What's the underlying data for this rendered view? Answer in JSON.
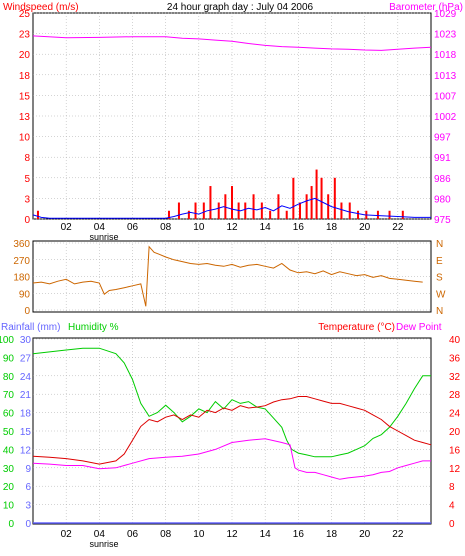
{
  "colors": {
    "wind_avg": "#0000ff",
    "wind_gust": "#ff0000",
    "barometer": "#ff00ff",
    "direction": "#cc6600",
    "rainfall": "#6666ff",
    "humidity": "#00cc00",
    "temperature": "#dd0000",
    "dewpoint": "#ff00ff",
    "axis_black": "#000000",
    "axis_green": "#00cc00",
    "axis_red": "#ff0000",
    "axis_blue": "#6666ff",
    "axis_orange": "#cc6600"
  },
  "chart_data": [
    {
      "type": "line",
      "title": "24 hour graph day : July 04 2006",
      "ylabel_left": "Windspeed (m/s)",
      "ylabel_right": "Barometer (hPa)",
      "ylim_left": [
        0,
        25
      ],
      "left_ticks": [
        0,
        3,
        5,
        8,
        10,
        13,
        15,
        18,
        20,
        23,
        25
      ],
      "right_ticks": [
        975,
        980,
        986,
        991,
        997,
        1002,
        1007,
        1013,
        1018,
        1023,
        1029
      ],
      "x_ticks": [
        "02",
        "04",
        "06",
        "08",
        "10",
        "12",
        "14",
        "16",
        "18",
        "20",
        "22"
      ],
      "x_note": "sunrise",
      "series": [
        {
          "name": "Windspeed (m/s)",
          "axis": "left",
          "x": [
            0,
            0.5,
            1,
            2,
            3,
            4,
            5,
            6,
            7,
            8,
            8.5,
            9,
            9.5,
            10,
            10.5,
            11,
            11.5,
            12,
            12.5,
            13,
            13.5,
            14,
            14.5,
            15,
            15.5,
            16,
            16.5,
            17,
            17.5,
            18,
            18.5,
            19,
            19.5,
            20,
            21,
            22,
            23,
            24
          ],
          "values": [
            0.5,
            0.2,
            0.1,
            0.1,
            0.1,
            0.1,
            0.1,
            0.1,
            0.1,
            0.1,
            0.3,
            0.6,
            0.8,
            0.6,
            1.0,
            1.2,
            1.5,
            1.2,
            1.0,
            1.3,
            1.1,
            1.4,
            1.0,
            1.6,
            1.3,
            1.8,
            2.2,
            2.5,
            2.0,
            1.5,
            1.2,
            0.9,
            0.7,
            0.5,
            0.4,
            0.3,
            0.2,
            0.2
          ]
        },
        {
          "name": "Gust",
          "type": "bar",
          "axis": "left",
          "x": [
            0.3,
            8.2,
            8.8,
            9.4,
            9.8,
            10.3,
            10.7,
            11.2,
            11.6,
            12.0,
            12.4,
            12.8,
            13.3,
            13.8,
            14.3,
            14.8,
            15.3,
            15.7,
            16.1,
            16.5,
            16.8,
            17.1,
            17.4,
            17.8,
            18.2,
            18.6,
            19.1,
            19.6,
            20.1,
            20.8,
            21.5,
            22.3
          ],
          "values": [
            1,
            1,
            2,
            1,
            2,
            2,
            4,
            2,
            3,
            4,
            2,
            2,
            3,
            2,
            1,
            3,
            1,
            5,
            2,
            3,
            4,
            6,
            5,
            3,
            5,
            2,
            2,
            1,
            1,
            1,
            1,
            1
          ]
        },
        {
          "name": "Barometer (hPa)",
          "axis": "right",
          "x": [
            0,
            2,
            4,
            6,
            8,
            9,
            10,
            11,
            12,
            13,
            14,
            15,
            16,
            17,
            18,
            19,
            20,
            21,
            22,
            23,
            24
          ],
          "values": [
            1023,
            1022.5,
            1022.6,
            1022.8,
            1022.8,
            1022.4,
            1022.2,
            1021.9,
            1021.6,
            1021.0,
            1020.5,
            1020.2,
            1020.0,
            1019.8,
            1019.6,
            1019.5,
            1019.3,
            1019.2,
            1019.5,
            1019.8,
            1020.0
          ]
        }
      ]
    },
    {
      "type": "line",
      "ylim": [
        0,
        360
      ],
      "left_ticks": [
        0,
        90,
        180,
        270,
        360
      ],
      "right_ticks": [
        "N",
        "W",
        "S",
        "E",
        "N"
      ],
      "series": [
        {
          "name": "Wind direction",
          "x": [
            0,
            0.5,
            1,
            1.5,
            2,
            2.5,
            3,
            3.5,
            4,
            4.3,
            4.6,
            5,
            5.5,
            6,
            6.5,
            6.8,
            7,
            7.3,
            7.6,
            8,
            8.5,
            9,
            9.5,
            10,
            10.5,
            11,
            11.5,
            12,
            12.5,
            13,
            13.5,
            14,
            14.5,
            15,
            15.5,
            16,
            16.5,
            17,
            17.5,
            18,
            18.5,
            19,
            19.5,
            20,
            20.5,
            21,
            21.5,
            22,
            22.5,
            23,
            23.5
          ],
          "values": [
            145,
            150,
            140,
            155,
            165,
            140,
            150,
            155,
            145,
            85,
            105,
            110,
            120,
            130,
            140,
            20,
            340,
            310,
            300,
            285,
            270,
            260,
            250,
            245,
            250,
            240,
            235,
            245,
            230,
            240,
            245,
            235,
            225,
            250,
            215,
            200,
            205,
            195,
            210,
            190,
            205,
            195,
            185,
            190,
            175,
            185,
            170,
            165,
            160,
            155,
            150
          ]
        }
      ]
    },
    {
      "type": "line",
      "ylabel_left": "Rainfall (mm)",
      "ylabel_left2": "Humidity %",
      "ylabel_right": "Temperature (°C)",
      "ylabel_right2": "Dew Point",
      "humidity_ticks": [
        0,
        10,
        20,
        30,
        40,
        50,
        60,
        70,
        80,
        90,
        100
      ],
      "rain_ticks": [
        0,
        3,
        6,
        9,
        12,
        15,
        18,
        21,
        24,
        27,
        30
      ],
      "temp_ticks": [
        0,
        4,
        8,
        12,
        16,
        20,
        24,
        28,
        32,
        36,
        40
      ],
      "x_ticks": [
        "02",
        "04",
        "06",
        "08",
        "10",
        "12",
        "14",
        "16",
        "18",
        "20",
        "22"
      ],
      "x_note": "sunrise",
      "series": [
        {
          "name": "Humidity %",
          "axis": "humidity",
          "x": [
            0,
            1,
            2,
            3,
            4,
            5,
            5.5,
            6,
            6.5,
            7,
            7.5,
            8,
            8.5,
            9,
            9.5,
            10,
            10.5,
            11,
            11.5,
            12,
            12.5,
            13,
            13.5,
            14,
            14.5,
            15,
            15.3,
            15.6,
            16,
            16.5,
            17,
            17.5,
            18,
            18.5,
            19,
            19.5,
            20,
            20.5,
            21,
            21.5,
            22,
            22.5,
            23,
            23.5,
            24
          ],
          "values": [
            92,
            93,
            94,
            95,
            95,
            92,
            87,
            78,
            65,
            58,
            60,
            64,
            60,
            55,
            58,
            62,
            60,
            66,
            62,
            67,
            65,
            66,
            63,
            62,
            57,
            52,
            45,
            40,
            38,
            37,
            36,
            36,
            36,
            37,
            38,
            40,
            42,
            46,
            48,
            52,
            58,
            65,
            73,
            80,
            80
          ]
        },
        {
          "name": "Rainfall (mm)",
          "axis": "rain",
          "x": [
            0,
            24
          ],
          "values": [
            0,
            0
          ]
        },
        {
          "name": "Temperature (°C)",
          "axis": "temp",
          "x": [
            0,
            1,
            2,
            3,
            4,
            5,
            5.5,
            6,
            6.5,
            7,
            7.5,
            8,
            8.5,
            9,
            9.5,
            10,
            10.5,
            11,
            11.5,
            12,
            12.5,
            13,
            13.5,
            14,
            14.5,
            15,
            15.5,
            16,
            16.5,
            17,
            17.5,
            18,
            18.5,
            19,
            19.5,
            20,
            20.5,
            21,
            21.5,
            22,
            22.5,
            23,
            23.5,
            24
          ],
          "values": [
            14.5,
            14.3,
            14,
            13.5,
            12.8,
            13.5,
            15,
            18,
            21,
            22.5,
            22,
            23,
            23.5,
            22.5,
            23.5,
            23,
            24.5,
            24,
            25,
            24.5,
            25.5,
            25,
            25.2,
            25.5,
            26.3,
            26.8,
            27,
            27.5,
            27.5,
            27,
            26.5,
            26,
            26,
            25.5,
            25,
            24.5,
            23.5,
            22.5,
            21,
            20,
            19,
            18,
            17.5,
            17
          ]
        },
        {
          "name": "Dew Point",
          "axis": "temp",
          "x": [
            0,
            1,
            2,
            3,
            4,
            5,
            5.5,
            6,
            7,
            8,
            9,
            10,
            11,
            12,
            13,
            14,
            15,
            15.5,
            15.8,
            16,
            16.5,
            17,
            17.5,
            18,
            18.5,
            19,
            19.5,
            20,
            20.5,
            21,
            21.5,
            22,
            22.5,
            23,
            23.5,
            24
          ],
          "values": [
            13,
            12.8,
            12.5,
            12.5,
            11.8,
            12,
            12.5,
            13,
            14,
            14.3,
            14.5,
            15,
            16,
            17.5,
            18,
            18.3,
            17.5,
            17,
            12,
            11.5,
            11,
            11,
            10.5,
            10,
            9.5,
            9.8,
            10,
            10.2,
            10.5,
            11,
            11.2,
            12,
            12.5,
            13,
            13.5,
            13.5
          ]
        }
      ]
    }
  ]
}
